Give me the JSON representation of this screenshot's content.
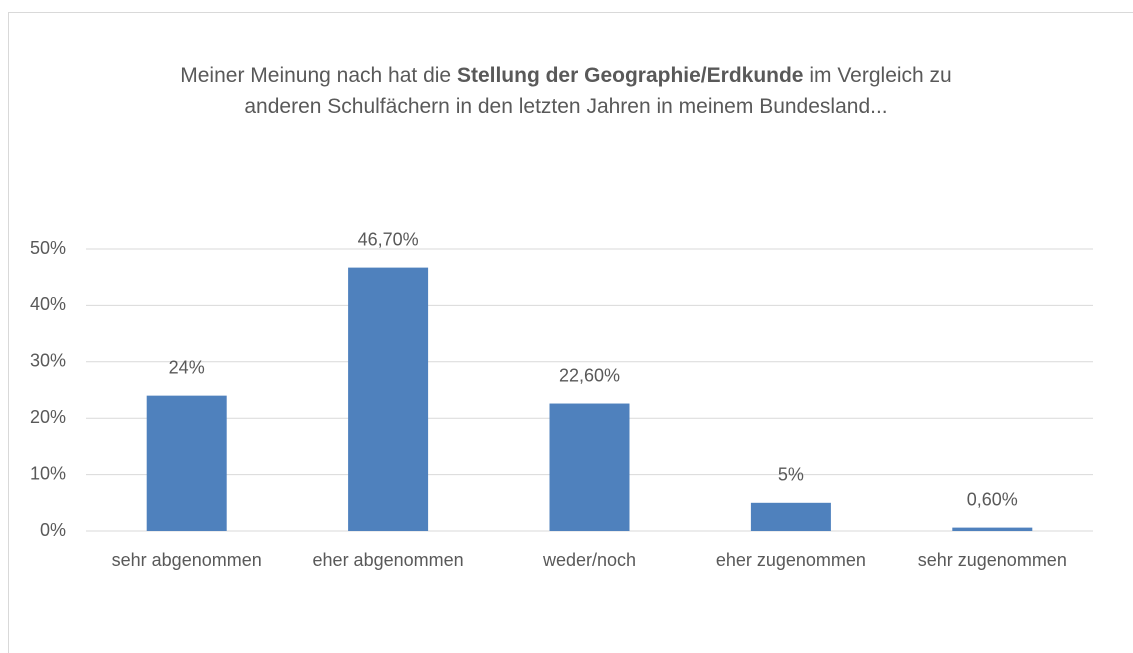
{
  "chart_data": {
    "type": "bar",
    "title": {
      "before": "Meiner Meinung nach hat die",
      "bold": "Stellung der Geographie/Erdkunde",
      "after": "im Vergleich zu anderen Schulfächern in den letzten Jahren in meinem Bundesland..."
    },
    "categories": [
      "sehr abgenommen",
      "eher abgenommen",
      "weder/noch",
      "eher zugenommen",
      "sehr zugenommen"
    ],
    "values": [
      24,
      46.7,
      22.6,
      5,
      0.6
    ],
    "value_labels": [
      "24%",
      "46,70%",
      "22,60%",
      "5%",
      "0,60%"
    ],
    "color": "#4f81bd",
    "ylim": [
      0,
      50
    ],
    "yticks": [
      {
        "value": 0,
        "label": "0%"
      },
      {
        "value": 10,
        "label": "10%"
      },
      {
        "value": 20,
        "label": "20%"
      },
      {
        "value": 30,
        "label": "30%"
      },
      {
        "value": 40,
        "label": "40%"
      },
      {
        "value": 50,
        "label": "50%"
      }
    ],
    "grid": true
  }
}
